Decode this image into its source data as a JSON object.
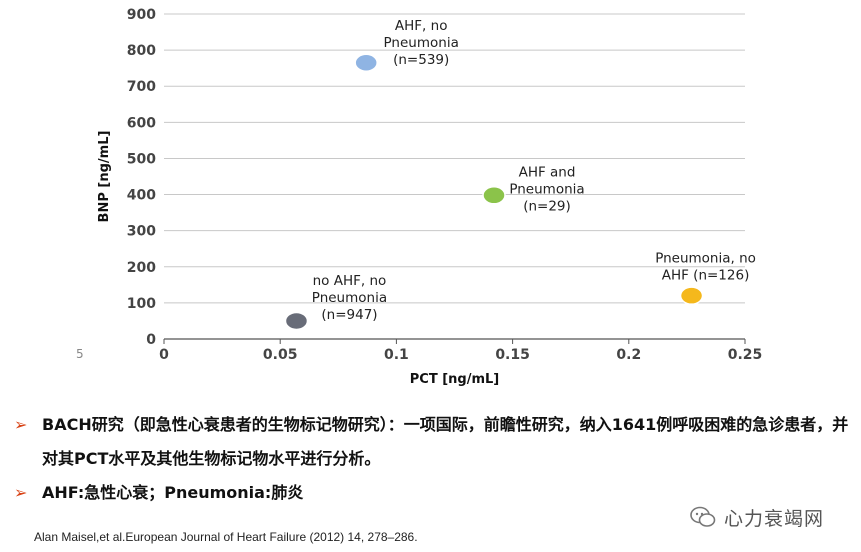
{
  "chart_data": {
    "type": "scatter",
    "xlabel": "PCT [ng/mL]",
    "ylabel": "BNP [ng/mL]",
    "xlim": [
      0,
      0.25
    ],
    "ylim": [
      0,
      900
    ],
    "x_ticks": [
      "0",
      "0.05",
      "0.1",
      "0.15",
      "0.2",
      "0.25"
    ],
    "y_ticks": [
      "0",
      "100",
      "200",
      "300",
      "400",
      "500",
      "600",
      "700",
      "800",
      "900"
    ],
    "grid": "horizontal",
    "legend": "none",
    "stray_mark": "5",
    "points": [
      {
        "label_lines": [
          "no AHF, no",
          "Pneumonia",
          "(n=947)"
        ],
        "x": 0.057,
        "y": 50,
        "color": "#686c78"
      },
      {
        "label_lines": [
          "AHF, no",
          "Pneumonia",
          "(n=539)"
        ],
        "x": 0.087,
        "y": 765,
        "color": "#8fb4e3"
      },
      {
        "label_lines": [
          "AHF and",
          "Pneumonia",
          "(n=29)"
        ],
        "x": 0.142,
        "y": 398,
        "color": "#8bc34a"
      },
      {
        "label_lines": [
          "Pneumonia, no",
          "AHF (n=126)"
        ],
        "x": 0.227,
        "y": 120,
        "color": "#f5b81c"
      }
    ]
  },
  "bullets": [
    "BACH研究（即急性心衰患者的生物标记物研究）：一项国际，前瞻性研究，纳入1641例呼吸困难的急诊患者，并对其PCT水平及其他生物标记物水平进行分析。",
    "AHF:急性心衰；Pneumonia:肺炎"
  ],
  "bullet_marker": "➢",
  "citation": "Alan Maisel,et al.European Journal of Heart Failure (2012) 14, 278–286.",
  "watermark": "心力衰竭网"
}
